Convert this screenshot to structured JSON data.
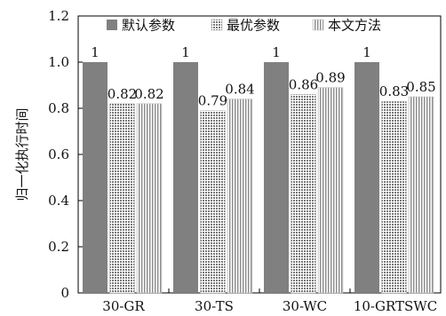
{
  "chart_data": {
    "type": "bar",
    "categories": [
      "30-GR",
      "30-TS",
      "30-WC",
      "10-GRTSWC"
    ],
    "series": [
      {
        "name": "默认参数",
        "values": [
          1,
          1,
          1,
          1
        ],
        "color": "#808080",
        "pattern": "solid"
      },
      {
        "name": "最优参数",
        "values": [
          0.82,
          0.79,
          0.86,
          0.83
        ],
        "color": "#9a9a9a",
        "pattern": "dots"
      },
      {
        "name": "本文方法",
        "values": [
          0.82,
          0.84,
          0.89,
          0.85
        ],
        "color": "#a6a6a6",
        "pattern": "vertical-lines"
      }
    ],
    "data_labels": [
      [
        "1",
        "1",
        "1",
        "1"
      ],
      [
        "0.82",
        "0.79",
        "0.86",
        "0.83"
      ],
      [
        "0.82",
        "0.84",
        "0.89",
        "0.85"
      ]
    ],
    "ylabel": "归一化执行时间",
    "xlabel": "",
    "ylim": [
      0,
      1.2
    ],
    "yticks": [
      "0",
      "0.2",
      "0.4",
      "0.6",
      "0.8",
      "1.0",
      "1.2"
    ],
    "legend_position": "top",
    "grid": false
  }
}
